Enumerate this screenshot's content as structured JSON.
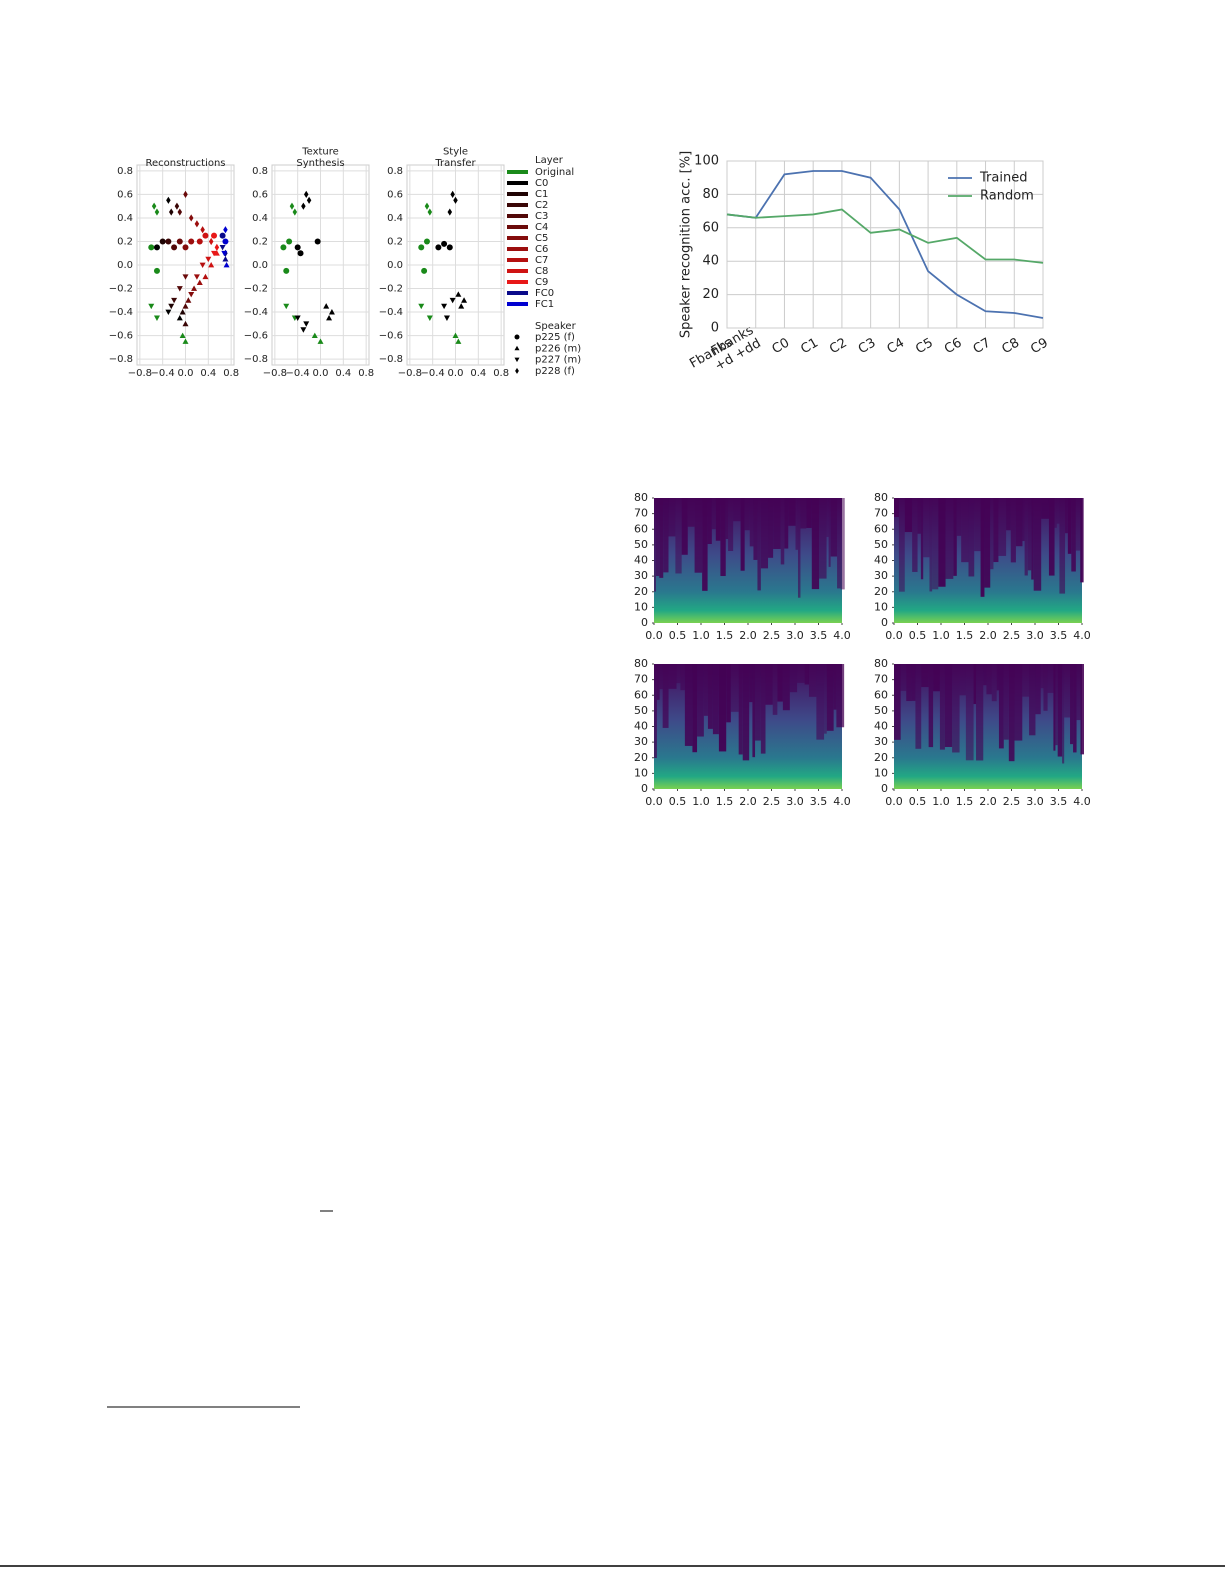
{
  "chart_data": [
    {
      "type": "scatter",
      "xlim": [
        -0.85,
        0.85
      ],
      "ylim": [
        -0.85,
        0.85
      ],
      "xticks": [
        {
          "value": -0.8,
          "label": "−0.8"
        },
        {
          "value": -0.4,
          "label": "−0.4"
        },
        {
          "value": 0,
          "label": "0.0"
        },
        0.4,
        0.8
      ],
      "yticks": [
        0.8,
        0.6,
        0.4,
        0.2,
        {
          "value": 0,
          "label": "0.0"
        },
        {
          "value": -0.2,
          "label": "−0.2"
        },
        {
          "value": -0.4,
          "label": "−0.4"
        },
        {
          "value": -0.6,
          "label": "−0.6"
        },
        {
          "value": -0.8,
          "label": "−0.8"
        }
      ],
      "grid": true,
      "legend": {
        "layer_title": "Layer",
        "layers": [
          {
            "name": "Original",
            "color": "#1a8a1a"
          },
          {
            "name": "C0",
            "color": "#000000"
          },
          {
            "name": "C1",
            "color": "#1f0303"
          },
          {
            "name": "C2",
            "color": "#3a0606"
          },
          {
            "name": "C3",
            "color": "#520808"
          },
          {
            "name": "C4",
            "color": "#6b0a0a"
          },
          {
            "name": "C5",
            "color": "#840c0c"
          },
          {
            "name": "C6",
            "color": "#9c0e0e"
          },
          {
            "name": "C7",
            "color": "#b51010"
          },
          {
            "name": "C8",
            "color": "#cf1313"
          },
          {
            "name": "C9",
            "color": "#e81818"
          },
          {
            "name": "FC0",
            "color": "#0a0a8a"
          },
          {
            "name": "FC1",
            "color": "#0000d0"
          }
        ],
        "speaker_title": "Speaker",
        "speakers": [
          {
            "name": "p225 (f)",
            "marker": "circle"
          },
          {
            "name": "p226 (m)",
            "marker": "triangle-up"
          },
          {
            "name": "p227 (m)",
            "marker": "triangle-down"
          },
          {
            "name": "p228 (f)",
            "marker": "diamond"
          }
        ]
      },
      "panels": [
        {
          "title": "Reconstructions",
          "series": [
            {
              "layer": 0,
              "x": [
                -0.6,
                -0.5,
                0.0,
                -0.05,
                -0.6,
                -0.5,
                -0.55,
                -0.5
              ],
              "values": [
                0.15,
                -0.05,
                -0.65,
                -0.6,
                -0.35,
                -0.45,
                0.5,
                0.45
              ],
              "speaker": [
                0,
                0,
                1,
                1,
                2,
                2,
                3,
                3
              ]
            },
            {
              "layer": 1,
              "x": [
                -0.5,
                -0.1,
                -0.3,
                -0.3
              ],
              "values": [
                0.15,
                -0.45,
                -0.4,
                0.55
              ],
              "speaker": [
                0,
                1,
                2,
                3
              ]
            },
            {
              "layer": 2,
              "x": [
                -0.4,
                -0.05,
                -0.25,
                -0.25
              ],
              "values": [
                0.2,
                -0.4,
                -0.35,
                0.45
              ],
              "speaker": [
                0,
                1,
                2,
                3
              ]
            },
            {
              "layer": 3,
              "x": [
                -0.3,
                0.0,
                -0.2,
                -0.15
              ],
              "values": [
                0.2,
                -0.5,
                -0.3,
                0.5
              ],
              "speaker": [
                0,
                1,
                2,
                3
              ]
            },
            {
              "layer": 4,
              "x": [
                -0.2,
                0.0,
                -0.1,
                -0.1
              ],
              "values": [
                0.15,
                -0.35,
                -0.2,
                0.45
              ],
              "speaker": [
                0,
                1,
                2,
                3
              ]
            },
            {
              "layer": 5,
              "x": [
                -0.1,
                0.05,
                0.0,
                0.0
              ],
              "values": [
                0.2,
                -0.3,
                -0.1,
                0.6
              ],
              "speaker": [
                0,
                1,
                2,
                3
              ]
            },
            {
              "layer": 6,
              "x": [
                0.0,
                0.15,
                0.1,
                0.1
              ],
              "values": [
                0.15,
                -0.2,
                -0.25,
                0.4
              ],
              "speaker": [
                0,
                1,
                2,
                3
              ]
            },
            {
              "layer": 7,
              "x": [
                0.1,
                0.25,
                0.2,
                0.2
              ],
              "values": [
                0.2,
                -0.15,
                -0.1,
                0.35
              ],
              "speaker": [
                0,
                1,
                2,
                3
              ]
            },
            {
              "layer": 8,
              "x": [
                0.25,
                0.35,
                0.3,
                0.3
              ],
              "values": [
                0.2,
                -0.1,
                0.0,
                0.3
              ],
              "speaker": [
                0,
                1,
                2,
                3
              ]
            },
            {
              "layer": 9,
              "x": [
                0.35,
                0.45,
                0.4,
                0.45
              ],
              "values": [
                0.25,
                0.0,
                0.05,
                0.2
              ],
              "speaker": [
                0,
                1,
                2,
                3
              ]
            },
            {
              "layer": 10,
              "x": [
                0.5,
                0.55,
                0.5,
                0.55
              ],
              "values": [
                0.25,
                0.1,
                0.1,
                0.15
              ],
              "speaker": [
                0,
                1,
                2,
                3
              ]
            },
            {
              "layer": 11,
              "x": [
                0.65,
                0.7,
                0.65,
                0.7
              ],
              "values": [
                0.25,
                0.05,
                0.15,
                0.1
              ],
              "speaker": [
                0,
                1,
                2,
                3
              ]
            },
            {
              "layer": 12,
              "x": [
                0.7,
                0.72,
                0.68,
                0.7
              ],
              "values": [
                0.2,
                0.0,
                0.1,
                0.3
              ],
              "speaker": [
                0,
                1,
                2,
                3
              ]
            }
          ]
        },
        {
          "title": "Texture\nSynthesis",
          "series": [
            {
              "layer": 0,
              "x": [
                -0.65,
                -0.6,
                -0.55,
                0.0,
                -0.1,
                -0.6,
                -0.45,
                -0.5,
                -0.45
              ],
              "values": [
                0.15,
                -0.05,
                0.2,
                -0.65,
                -0.6,
                -0.35,
                -0.45,
                0.5,
                0.45
              ],
              "speaker": [
                0,
                0,
                0,
                1,
                1,
                2,
                2,
                3,
                3
              ]
            },
            {
              "layer": 1,
              "x": [
                -0.4,
                -0.35,
                -0.05,
                0.1,
                0.15,
                0.2,
                -0.4,
                -0.25,
                -0.3,
                -0.3,
                -0.25,
                -0.2
              ],
              "values": [
                0.15,
                0.1,
                0.2,
                -0.35,
                -0.45,
                -0.4,
                -0.45,
                -0.5,
                -0.55,
                0.5,
                0.6,
                0.55
              ],
              "speaker": [
                0,
                0,
                0,
                1,
                1,
                1,
                2,
                2,
                2,
                3,
                3,
                3
              ]
            }
          ]
        },
        {
          "title": "Style\nTransfer",
          "series": [
            {
              "layer": 0,
              "x": [
                -0.6,
                -0.55,
                -0.5,
                0.0,
                0.05,
                -0.6,
                -0.45,
                -0.5,
                -0.45
              ],
              "values": [
                0.15,
                -0.05,
                0.2,
                -0.6,
                -0.65,
                -0.35,
                -0.45,
                0.5,
                0.45
              ],
              "speaker": [
                0,
                0,
                0,
                1,
                1,
                2,
                2,
                3,
                3
              ]
            },
            {
              "layer": 1,
              "x": [
                -0.3,
                -0.2,
                -0.1,
                0.05,
                0.1,
                0.15,
                -0.2,
                -0.15,
                -0.05,
                -0.1,
                0.0,
                -0.05
              ],
              "values": [
                0.15,
                0.18,
                0.15,
                -0.25,
                -0.35,
                -0.3,
                -0.35,
                -0.45,
                -0.3,
                0.45,
                0.55,
                0.6
              ],
              "speaker": [
                0,
                0,
                0,
                1,
                1,
                1,
                2,
                2,
                2,
                3,
                3,
                3
              ]
            }
          ]
        }
      ]
    },
    {
      "type": "line",
      "categories": [
        "Fbanks",
        "Fbanks\n+d +dd",
        "C0",
        "C1",
        "C2",
        "C3",
        "C4",
        "C5",
        "C6",
        "C7",
        "C8",
        "C9"
      ],
      "y_label": "Speaker recognition acc. [%]",
      "ylim": [
        0,
        100
      ],
      "yticks": [
        0,
        20,
        40,
        60,
        80,
        100
      ],
      "grid": true,
      "legend": "upper right",
      "series": [
        {
          "name": "Trained",
          "color": "#4c72b0",
          "values": [
            68,
            66,
            92,
            94,
            94,
            90,
            71,
            34,
            20,
            10,
            9,
            6
          ]
        },
        {
          "name": "Random",
          "color": "#55a868",
          "values": [
            68,
            66,
            67,
            68,
            71,
            57,
            59,
            51,
            54,
            41,
            41,
            39
          ]
        }
      ]
    },
    {
      "type": "spectrogram",
      "xlim": [
        0,
        4
      ],
      "ylim": [
        0,
        80
      ],
      "xticks": [
        {
          "value": 0,
          "label": "0.0"
        },
        0.5,
        {
          "value": 1,
          "label": "1.0"
        },
        1.5,
        {
          "value": 2,
          "label": "2.0"
        },
        2.5,
        {
          "value": 3,
          "label": "3.0"
        },
        3.5,
        {
          "value": 4,
          "label": "4.0"
        }
      ],
      "yticks": [
        0,
        10,
        20,
        30,
        40,
        50,
        60,
        70,
        80
      ]
    }
  ]
}
